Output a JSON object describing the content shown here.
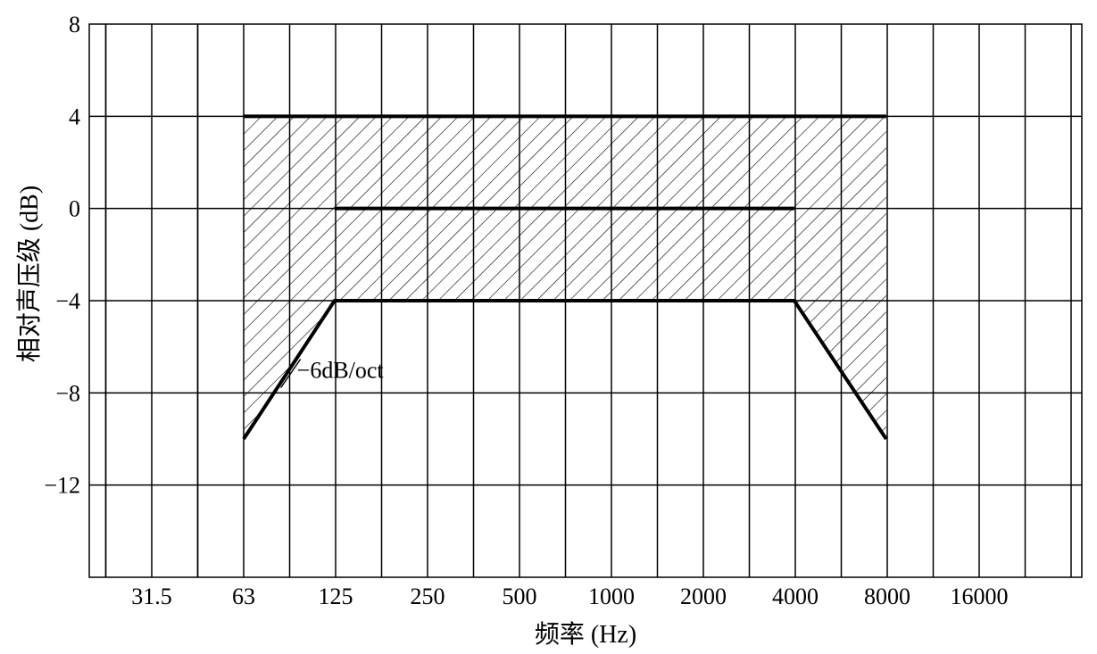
{
  "chart_data": {
    "type": "line",
    "title": "",
    "xlabel": "频率 (Hz)",
    "ylabel": "相对声压级 (dB)",
    "x_scale": "octave",
    "x_ticks": [
      "31.5",
      "63",
      "125",
      "250",
      "500",
      "1000",
      "2000",
      "4000",
      "8000",
      "16000"
    ],
    "y_ticks": [
      8,
      4,
      0,
      -4,
      -8,
      -12
    ],
    "ylim": [
      -16,
      8
    ],
    "grid": true,
    "series": [
      {
        "style": "thick-line",
        "x": [
          63,
          8000
        ],
        "y": [
          4,
          4
        ]
      },
      {
        "style": "thick-line",
        "x": [
          125,
          4000
        ],
        "y": [
          0,
          0
        ]
      },
      {
        "style": "thick-line",
        "x": [
          63,
          125,
          4000,
          8000
        ],
        "y": [
          -10,
          -4,
          -4,
          -10
        ]
      }
    ],
    "shaded_region": {
      "pattern": "hatched",
      "x": [
        63,
        8000
      ],
      "upper": [
        [
          63,
          4
        ],
        [
          8000,
          4
        ]
      ],
      "lower": [
        [
          63,
          -10
        ],
        [
          125,
          -4
        ],
        [
          4000,
          -4
        ],
        [
          8000,
          -10
        ]
      ]
    },
    "annotations": [
      {
        "text": "−6dB/oct",
        "x": 88,
        "y": -7
      }
    ]
  }
}
